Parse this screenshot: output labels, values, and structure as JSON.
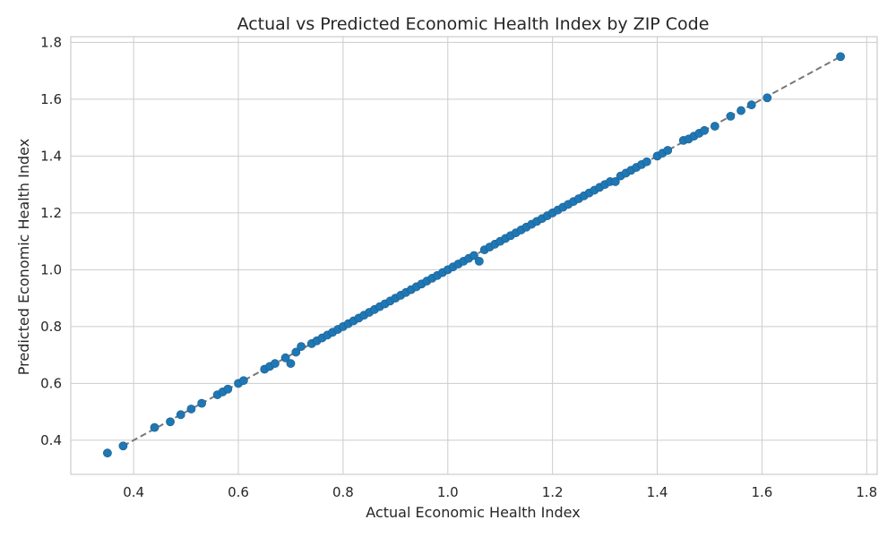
{
  "chart_data": {
    "type": "scatter",
    "title": "Actual vs Predicted Economic Health Index by ZIP Code",
    "xlabel": "Actual Economic Health Index",
    "ylabel": "Predicted Economic Health Index",
    "xlim": [
      0.28,
      1.82
    ],
    "ylim": [
      0.28,
      1.82
    ],
    "xticks": [
      "0.4",
      "0.6",
      "0.8",
      "1.0",
      "1.2",
      "1.4",
      "1.6",
      "1.8"
    ],
    "yticks": [
      "0.4",
      "0.6",
      "0.8",
      "1.0",
      "1.2",
      "1.4",
      "1.6",
      "1.8"
    ],
    "grid": true,
    "reference_line": {
      "style": "dashed",
      "color": "#777777",
      "from": [
        0.38,
        0.38
      ],
      "to": [
        1.75,
        1.75
      ]
    },
    "colors": {
      "points": "#1f77b4",
      "grid": "#cccccc",
      "axes": "#cccccc"
    },
    "series": [
      {
        "points": [
          [
            0.35,
            0.355
          ],
          [
            0.38,
            0.38
          ],
          [
            0.44,
            0.445
          ],
          [
            0.47,
            0.465
          ],
          [
            0.49,
            0.49
          ],
          [
            0.51,
            0.51
          ],
          [
            0.53,
            0.53
          ],
          [
            0.56,
            0.56
          ],
          [
            0.57,
            0.57
          ],
          [
            0.58,
            0.58
          ],
          [
            0.6,
            0.6
          ],
          [
            0.61,
            0.61
          ],
          [
            0.65,
            0.65
          ],
          [
            0.66,
            0.66
          ],
          [
            0.67,
            0.67
          ],
          [
            0.69,
            0.69
          ],
          [
            0.7,
            0.67
          ],
          [
            0.71,
            0.71
          ],
          [
            0.72,
            0.73
          ],
          [
            0.74,
            0.74
          ],
          [
            0.75,
            0.75
          ],
          [
            0.76,
            0.76
          ],
          [
            0.77,
            0.77
          ],
          [
            0.78,
            0.78
          ],
          [
            0.79,
            0.79
          ],
          [
            0.8,
            0.8
          ],
          [
            0.81,
            0.81
          ],
          [
            0.82,
            0.82
          ],
          [
            0.83,
            0.83
          ],
          [
            0.84,
            0.84
          ],
          [
            0.85,
            0.85
          ],
          [
            0.86,
            0.86
          ],
          [
            0.87,
            0.87
          ],
          [
            0.88,
            0.88
          ],
          [
            0.89,
            0.89
          ],
          [
            0.9,
            0.9
          ],
          [
            0.91,
            0.91
          ],
          [
            0.92,
            0.92
          ],
          [
            0.93,
            0.93
          ],
          [
            0.94,
            0.94
          ],
          [
            0.95,
            0.95
          ],
          [
            0.96,
            0.96
          ],
          [
            0.97,
            0.97
          ],
          [
            0.98,
            0.98
          ],
          [
            0.99,
            0.99
          ],
          [
            1.0,
            1.0
          ],
          [
            1.01,
            1.01
          ],
          [
            1.02,
            1.02
          ],
          [
            1.03,
            1.03
          ],
          [
            1.04,
            1.04
          ],
          [
            1.05,
            1.05
          ],
          [
            1.06,
            1.03
          ],
          [
            1.07,
            1.07
          ],
          [
            1.08,
            1.08
          ],
          [
            1.09,
            1.09
          ],
          [
            1.1,
            1.1
          ],
          [
            1.11,
            1.11
          ],
          [
            1.12,
            1.12
          ],
          [
            1.13,
            1.13
          ],
          [
            1.14,
            1.14
          ],
          [
            1.15,
            1.15
          ],
          [
            1.16,
            1.16
          ],
          [
            1.17,
            1.17
          ],
          [
            1.18,
            1.18
          ],
          [
            1.19,
            1.19
          ],
          [
            1.2,
            1.2
          ],
          [
            1.21,
            1.21
          ],
          [
            1.22,
            1.22
          ],
          [
            1.23,
            1.23
          ],
          [
            1.24,
            1.24
          ],
          [
            1.25,
            1.25
          ],
          [
            1.26,
            1.26
          ],
          [
            1.27,
            1.27
          ],
          [
            1.28,
            1.28
          ],
          [
            1.29,
            1.29
          ],
          [
            1.3,
            1.3
          ],
          [
            1.31,
            1.31
          ],
          [
            1.32,
            1.31
          ],
          [
            1.33,
            1.33
          ],
          [
            1.34,
            1.34
          ],
          [
            1.35,
            1.35
          ],
          [
            1.36,
            1.36
          ],
          [
            1.37,
            1.37
          ],
          [
            1.38,
            1.38
          ],
          [
            1.4,
            1.4
          ],
          [
            1.41,
            1.41
          ],
          [
            1.42,
            1.42
          ],
          [
            1.45,
            1.455
          ],
          [
            1.46,
            1.46
          ],
          [
            1.47,
            1.47
          ],
          [
            1.48,
            1.48
          ],
          [
            1.49,
            1.49
          ],
          [
            1.51,
            1.505
          ],
          [
            1.54,
            1.54
          ],
          [
            1.56,
            1.56
          ],
          [
            1.58,
            1.58
          ],
          [
            1.61,
            1.605
          ],
          [
            1.75,
            1.75
          ]
        ]
      }
    ]
  }
}
